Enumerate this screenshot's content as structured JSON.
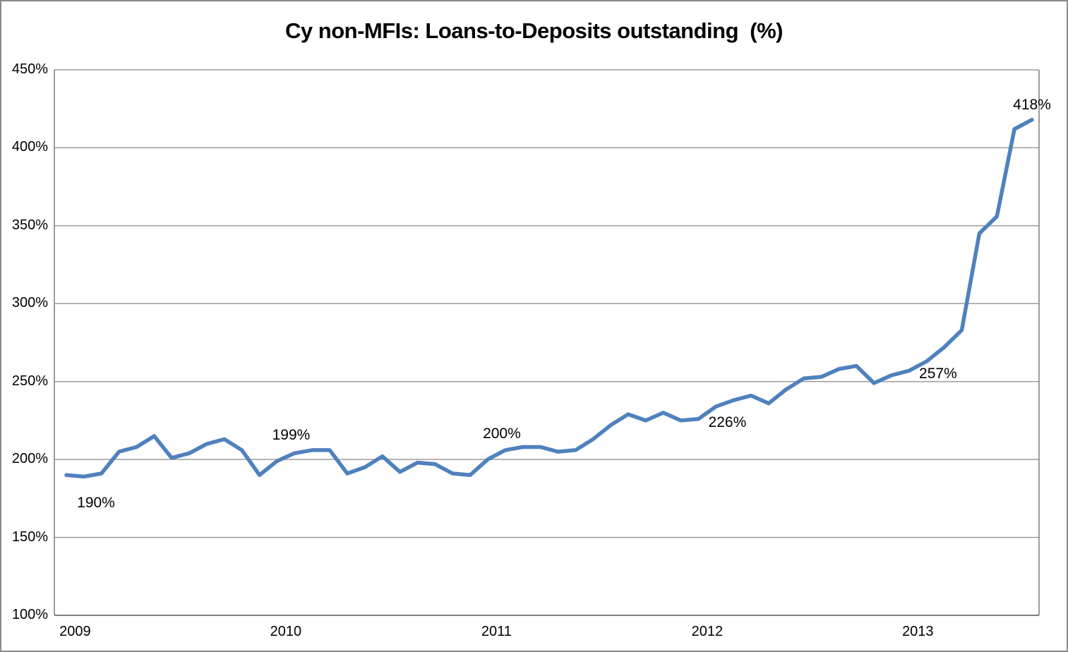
{
  "chart_data": {
    "type": "line",
    "title": "Cy non-MFIs: Loans-to-Deposits outstanding  (%)",
    "xlabel": "",
    "ylabel": "",
    "ylim": [
      100,
      450
    ],
    "y_tick_step": 50,
    "y_ticks": [
      450,
      400,
      350,
      300,
      250,
      200,
      150,
      100
    ],
    "y_tick_suffix": "%",
    "x_ticks": [
      {
        "label": "2009",
        "index": 0
      },
      {
        "label": "2010",
        "index": 12
      },
      {
        "label": "2011",
        "index": 24
      },
      {
        "label": "2012",
        "index": 36
      },
      {
        "label": "2013",
        "index": 48
      }
    ],
    "grid": "horizontal",
    "legend": "none",
    "series": [
      {
        "values": [
          190,
          189,
          191,
          205,
          208,
          215,
          201,
          204,
          210,
          213,
          206,
          190,
          199,
          204,
          206,
          206,
          191,
          195,
          202,
          192,
          198,
          197,
          191,
          190,
          200,
          206,
          208,
          208,
          205,
          206,
          213,
          222,
          229,
          225,
          230,
          225,
          226,
          234,
          238,
          241,
          236,
          245,
          252,
          253,
          258,
          260,
          249,
          254,
          257,
          263,
          272,
          283,
          345,
          356,
          412,
          418
        ]
      }
    ],
    "point_labels": [
      {
        "index": 0,
        "text": "190%",
        "position": "below"
      },
      {
        "index": 12,
        "text": "199%",
        "position": "above"
      },
      {
        "index": 24,
        "text": "200%",
        "position": "above"
      },
      {
        "index": 36,
        "text": "226%",
        "position": "right"
      },
      {
        "index": 48,
        "text": "257%",
        "position": "right"
      },
      {
        "index": 55,
        "text": "418%",
        "position": "above-end"
      }
    ],
    "colors": {
      "line": "#4F81BD",
      "gridline": "#9c9c9c",
      "axis": "#7f7f7f",
      "frame_border": "#8a8a8a",
      "text": "#000000"
    }
  }
}
